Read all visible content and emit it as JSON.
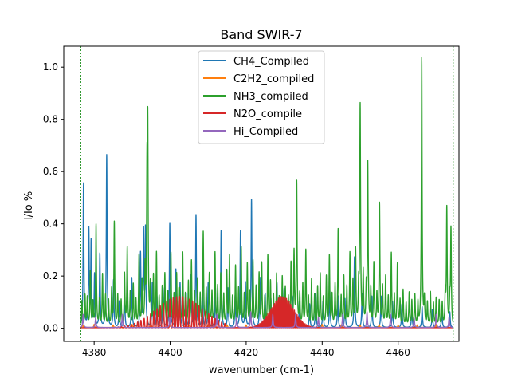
{
  "chart_data": {
    "type": "line",
    "title": "Band SWIR-7",
    "xlabel": "wavenumber (cm-1)",
    "ylabel": "I/Io %",
    "xlim": [
      4372,
      4476
    ],
    "ylim": [
      -0.05,
      1.08
    ],
    "xticks": [
      4380,
      4400,
      4420,
      4440,
      4460
    ],
    "xtick_labels": [
      "4380",
      "4400",
      "4420",
      "4440",
      "4460"
    ],
    "yticks": [
      0.0,
      0.2,
      0.4,
      0.6,
      0.8,
      1.0
    ],
    "ytick_labels": [
      "0.0",
      "0.2",
      "0.4",
      "0.6",
      "0.8",
      "1.0"
    ],
    "band_edges": [
      4376.5,
      4474.5
    ],
    "grid": false,
    "legend_position": "top-center",
    "series": [
      {
        "name": "CH4_Compiled",
        "color": "#1f77b4",
        "peaks": [
          [
            4377.2,
            0.55
          ],
          [
            4378.6,
            0.37
          ],
          [
            4379.2,
            0.32
          ],
          [
            4380.1,
            0.2
          ],
          [
            4381.5,
            0.28
          ],
          [
            4383.3,
            0.66
          ],
          [
            4385.1,
            0.18
          ],
          [
            4386.6,
            0.1
          ],
          [
            4388.0,
            0.14
          ],
          [
            4389.9,
            0.19
          ],
          [
            4392.2,
            0.28
          ],
          [
            4393.0,
            0.36
          ],
          [
            4393.5,
            0.37
          ],
          [
            4395.3,
            0.17
          ],
          [
            4396.5,
            0.12
          ],
          [
            4398.1,
            0.15
          ],
          [
            4399.9,
            0.4
          ],
          [
            4401.5,
            0.22
          ],
          [
            4402.6,
            0.17
          ],
          [
            4404.2,
            0.13
          ],
          [
            4405.5,
            0.2
          ],
          [
            4406.8,
            0.43
          ],
          [
            4408.5,
            0.17
          ],
          [
            4410.0,
            0.17
          ],
          [
            4411.9,
            0.15
          ],
          [
            4413.4,
            0.37
          ],
          [
            4415.2,
            0.15
          ],
          [
            4417.1,
            0.12
          ],
          [
            4418.5,
            0.37
          ],
          [
            4419.8,
            0.17
          ],
          [
            4421.4,
            0.49
          ],
          [
            4423.6,
            0.19
          ],
          [
            4425.0,
            0.13
          ],
          [
            4426.5,
            0.11
          ],
          [
            4428.1,
            0.17
          ],
          [
            4430.0,
            0.15
          ],
          [
            4432.1,
            0.12
          ],
          [
            4434.0,
            0.1
          ],
          [
            4436.7,
            0.09
          ],
          [
            4438.3,
            0.13
          ],
          [
            4440.2,
            0.1
          ],
          [
            4442.0,
            0.14
          ],
          [
            4444.1,
            0.12
          ],
          [
            4446.0,
            0.11
          ],
          [
            4448.5,
            0.27
          ],
          [
            4450.5,
            0.13
          ],
          [
            4453.1,
            0.12
          ],
          [
            4455.5,
            0.12
          ],
          [
            4458.5,
            0.1
          ],
          [
            4461.0,
            0.09
          ],
          [
            4463.6,
            0.08
          ],
          [
            4466.3,
            0.08
          ],
          [
            4469.0,
            0.07
          ],
          [
            4471.5,
            0.07
          ],
          [
            4473.6,
            0.06
          ]
        ]
      },
      {
        "name": "C2H2_compiled",
        "color": "#ff7f0e",
        "peaks": [
          [
            4377.0,
            0.01
          ],
          [
            4380.0,
            0.012
          ],
          [
            4385.0,
            0.01
          ],
          [
            4390.0,
            0.012
          ],
          [
            4395.0,
            0.01
          ],
          [
            4400.0,
            0.012
          ],
          [
            4405.0,
            0.01
          ],
          [
            4410.0,
            0.012
          ],
          [
            4415.0,
            0.01
          ],
          [
            4420.0,
            0.01
          ],
          [
            4425.0,
            0.012
          ],
          [
            4430.0,
            0.01
          ],
          [
            4435.0,
            0.01
          ],
          [
            4440.0,
            0.012
          ],
          [
            4445.0,
            0.01
          ],
          [
            4450.0,
            0.01
          ],
          [
            4455.0,
            0.012
          ],
          [
            4460.0,
            0.01
          ],
          [
            4465.0,
            0.01
          ],
          [
            4470.0,
            0.012
          ]
        ]
      },
      {
        "name": "NH3_compiled",
        "color": "#2ca02c",
        "peaks": [
          [
            4376.8,
            0.1
          ],
          [
            4377.6,
            0.12
          ],
          [
            4378.2,
            0.11
          ],
          [
            4379.0,
            0.21
          ],
          [
            4379.7,
            0.09
          ],
          [
            4380.5,
            0.39
          ],
          [
            4381.4,
            0.1
          ],
          [
            4382.2,
            0.2
          ],
          [
            4383.0,
            0.12
          ],
          [
            4383.8,
            0.1
          ],
          [
            4384.6,
            0.14
          ],
          [
            4385.3,
            0.4
          ],
          [
            4386.2,
            0.12
          ],
          [
            4387.1,
            0.1
          ],
          [
            4388.0,
            0.2
          ],
          [
            4388.7,
            0.3
          ],
          [
            4389.5,
            0.13
          ],
          [
            4390.3,
            0.16
          ],
          [
            4391.0,
            0.1
          ],
          [
            4391.8,
            0.27
          ],
          [
            4392.6,
            0.17
          ],
          [
            4393.4,
            0.21
          ],
          [
            4393.9,
            0.49
          ],
          [
            4394.1,
            0.7
          ],
          [
            4394.8,
            0.15
          ],
          [
            4395.6,
            0.19
          ],
          [
            4396.4,
            0.28
          ],
          [
            4397.1,
            0.11
          ],
          [
            4397.9,
            0.15
          ],
          [
            4398.6,
            0.2
          ],
          [
            4399.4,
            0.13
          ],
          [
            4400.2,
            0.28
          ],
          [
            4401.0,
            0.12
          ],
          [
            4401.7,
            0.2
          ],
          [
            4402.5,
            0.14
          ],
          [
            4403.3,
            0.28
          ],
          [
            4404.0,
            0.12
          ],
          [
            4404.8,
            0.17
          ],
          [
            4405.6,
            0.25
          ],
          [
            4406.4,
            0.13
          ],
          [
            4407.2,
            0.18
          ],
          [
            4407.9,
            0.12
          ],
          [
            4408.7,
            0.36
          ],
          [
            4409.5,
            0.14
          ],
          [
            4410.3,
            0.2
          ],
          [
            4411.0,
            0.13
          ],
          [
            4411.8,
            0.28
          ],
          [
            4412.5,
            0.15
          ],
          [
            4413.3,
            0.2
          ],
          [
            4414.1,
            0.12
          ],
          [
            4414.9,
            0.21
          ],
          [
            4415.6,
            0.27
          ],
          [
            4416.4,
            0.11
          ],
          [
            4417.2,
            0.23
          ],
          [
            4418.0,
            0.14
          ],
          [
            4418.7,
            0.3
          ],
          [
            4419.5,
            0.12
          ],
          [
            4420.3,
            0.24
          ],
          [
            4421.0,
            0.13
          ],
          [
            4421.8,
            0.25
          ],
          [
            4422.6,
            0.15
          ],
          [
            4423.4,
            0.2
          ],
          [
            4424.1,
            0.24
          ],
          [
            4424.9,
            0.11
          ],
          [
            4425.7,
            0.27
          ],
          [
            4426.4,
            0.17
          ],
          [
            4427.2,
            0.12
          ],
          [
            4428.0,
            0.2
          ],
          [
            4428.7,
            0.11
          ],
          [
            4429.5,
            0.19
          ],
          [
            4430.3,
            0.15
          ],
          [
            4431.1,
            0.11
          ],
          [
            4431.8,
            0.24
          ],
          [
            4432.6,
            0.28
          ],
          [
            4433.3,
            0.55
          ],
          [
            4434.1,
            0.12
          ],
          [
            4434.9,
            0.16
          ],
          [
            4435.7,
            0.29
          ],
          [
            4436.4,
            0.11
          ],
          [
            4437.2,
            0.18
          ],
          [
            4438.0,
            0.12
          ],
          [
            4438.8,
            0.15
          ],
          [
            4439.5,
            0.2
          ],
          [
            4440.3,
            0.11
          ],
          [
            4441.1,
            0.19
          ],
          [
            4441.9,
            0.27
          ],
          [
            4442.6,
            0.12
          ],
          [
            4443.4,
            0.16
          ],
          [
            4444.2,
            0.37
          ],
          [
            4445.0,
            0.11
          ],
          [
            4445.7,
            0.19
          ],
          [
            4446.5,
            0.15
          ],
          [
            4447.3,
            0.28
          ],
          [
            4448.1,
            0.17
          ],
          [
            4448.8,
            0.29
          ],
          [
            4449.6,
            0.13
          ],
          [
            4450.0,
            0.84
          ],
          [
            4450.8,
            0.2
          ],
          [
            4451.6,
            0.13
          ],
          [
            4452.0,
            0.62
          ],
          [
            4452.8,
            0.14
          ],
          [
            4453.6,
            0.24
          ],
          [
            4454.4,
            0.12
          ],
          [
            4455.1,
            0.47
          ],
          [
            4455.9,
            0.15
          ],
          [
            4456.7,
            0.19
          ],
          [
            4457.4,
            0.11
          ],
          [
            4458.2,
            0.28
          ],
          [
            4459.0,
            0.12
          ],
          [
            4459.8,
            0.24
          ],
          [
            4460.5,
            0.1
          ],
          [
            4461.3,
            0.14
          ],
          [
            4462.1,
            0.09
          ],
          [
            4462.9,
            0.13
          ],
          [
            4463.6,
            0.1
          ],
          [
            4464.4,
            0.12
          ],
          [
            4465.2,
            0.09
          ],
          [
            4466.2,
            1.03
          ],
          [
            4466.9,
            0.1
          ],
          [
            4467.7,
            0.09
          ],
          [
            4468.5,
            0.13
          ],
          [
            4469.3,
            0.09
          ],
          [
            4470.0,
            0.11
          ],
          [
            4470.8,
            0.1
          ],
          [
            4471.6,
            0.09
          ],
          [
            4472.4,
            0.12
          ],
          [
            4472.8,
            0.45
          ],
          [
            4473.6,
            0.09
          ],
          [
            4473.9,
            0.37
          ]
        ]
      },
      {
        "name": "N2O_compile",
        "color": "#d62728",
        "bands": [
          {
            "center": 4402.5,
            "amplitude": 0.12,
            "width": 8.5,
            "spacing": 0.85,
            "start": 4377.0,
            "end": 4415.0
          },
          {
            "center": 4429.5,
            "amplitude": 0.12,
            "width": 4.2,
            "spacing": 0.35,
            "start": 4418.0,
            "end": 4441.0
          }
        ]
      },
      {
        "name": "Hi_Compiled",
        "color": "#9467bd",
        "peaks": [
          [
            4377.1,
            0.05
          ],
          [
            4380.4,
            0.04
          ],
          [
            4387.4,
            0.05
          ],
          [
            4399.9,
            0.04
          ],
          [
            4412.3,
            0.05
          ],
          [
            4417.5,
            0.04
          ],
          [
            4421.2,
            0.06
          ],
          [
            4427.0,
            0.05
          ],
          [
            4433.0,
            0.05
          ],
          [
            4439.0,
            0.04
          ],
          [
            4445.4,
            0.05
          ],
          [
            4451.8,
            0.06
          ],
          [
            4458.0,
            0.05
          ],
          [
            4464.2,
            0.04
          ],
          [
            4470.0,
            0.05
          ],
          [
            4473.4,
            0.04
          ]
        ]
      }
    ]
  }
}
